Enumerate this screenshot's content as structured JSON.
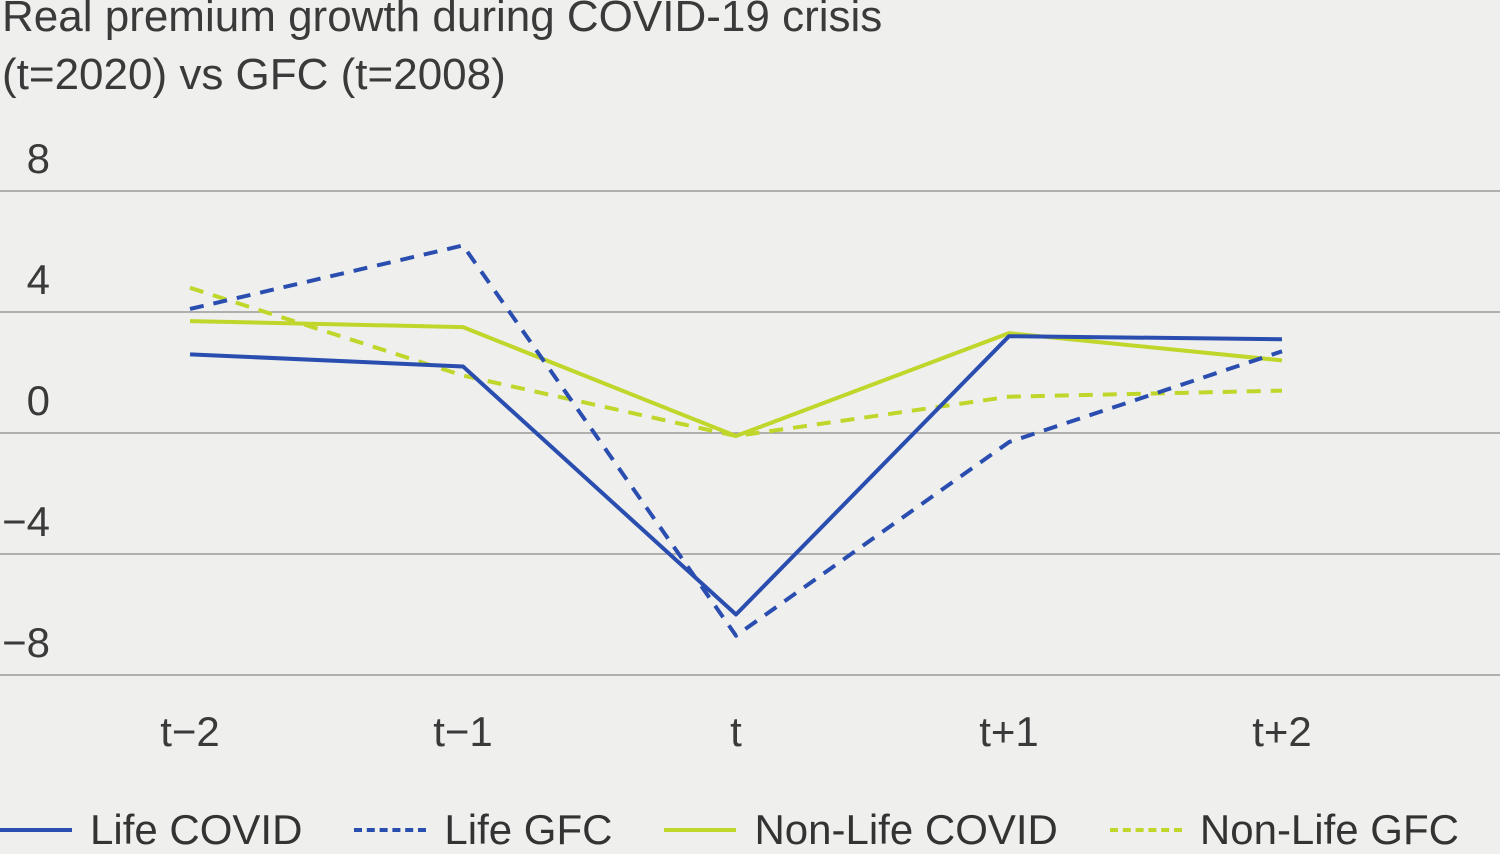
{
  "chart_data": {
    "type": "line",
    "title": "Real premium growth during COVID-19 crisis (t=2020) vs GFC (t=2008)",
    "title_lines": [
      "Real premium growth during COVID-19 crisis",
      "(t=2020) vs GFC (t=2008)"
    ],
    "categories": [
      "t−2",
      "t−1",
      "t",
      "t+1",
      "t+2"
    ],
    "ylim": [
      -8,
      8
    ],
    "yticks": [
      8,
      4,
      0,
      -4,
      -8
    ],
    "ytick_labels": [
      "8",
      "4",
      "0",
      "−4",
      "−8"
    ],
    "grid": true,
    "legend_position": "bottom",
    "series": [
      {
        "name": "Life COVID",
        "color": "#2a4db0",
        "style": "solid",
        "values": [
          2.6,
          2.2,
          -6.0,
          3.2,
          3.1
        ]
      },
      {
        "name": "Life GFC",
        "color": "#2a4db0",
        "style": "dashed",
        "values": [
          4.1,
          6.2,
          -6.7,
          -0.3,
          2.7
        ]
      },
      {
        "name": "Non-Life COVID",
        "color": "#c0d62a",
        "style": "solid",
        "values": [
          3.7,
          3.5,
          -0.1,
          3.3,
          2.4
        ]
      },
      {
        "name": "Non-Life GFC",
        "color": "#c0d62a",
        "style": "dashed",
        "values": [
          4.8,
          1.9,
          -0.1,
          1.2,
          1.4
        ]
      }
    ]
  }
}
